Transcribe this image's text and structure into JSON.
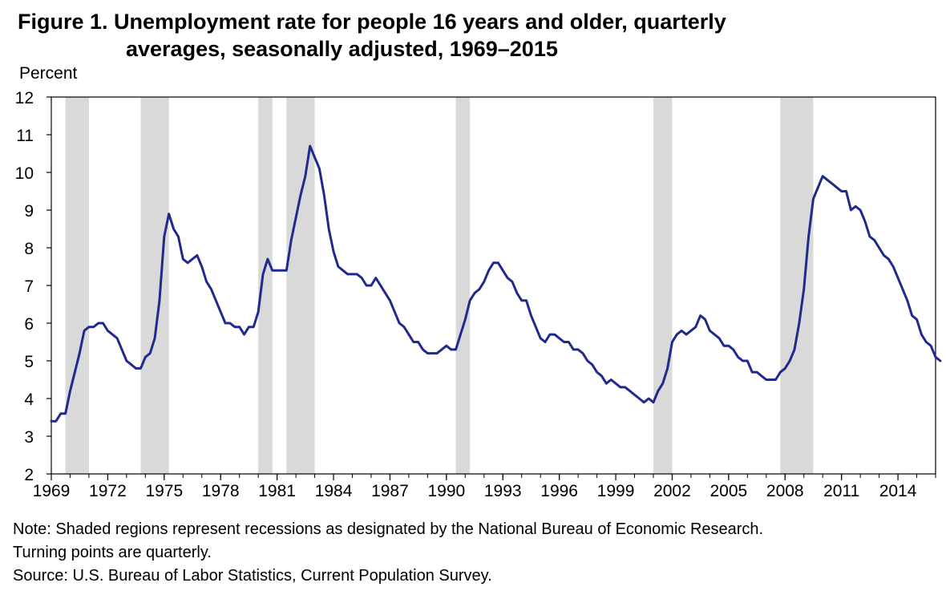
{
  "header": {
    "title_line1": "Figure 1. Unemployment rate for people 16 years and older, quarterly",
    "title_line2": "averages, seasonally adjusted, 1969–2015"
  },
  "chart_data": {
    "type": "line",
    "title": "Figure 1. Unemployment rate for people 16 years and older, quarterly averages, seasonally adjusted, 1969–2015",
    "ylabel": "Percent",
    "xlabel": "",
    "xlim": [
      1969.0,
      2016.0
    ],
    "ylim": [
      2,
      12
    ],
    "yticks": [
      2,
      3,
      4,
      5,
      6,
      7,
      8,
      9,
      10,
      11,
      12
    ],
    "xtick_labels": [
      "1969",
      "1972",
      "1975",
      "1978",
      "1981",
      "1984",
      "1987",
      "1990",
      "1993",
      "1996",
      "1999",
      "2002",
      "2005",
      "2008",
      "2011",
      "2014"
    ],
    "recessions": [
      {
        "start": 1969.75,
        "end": 1971.0
      },
      {
        "start": 1973.75,
        "end": 1975.25
      },
      {
        "start": 1980.0,
        "end": 1980.75
      },
      {
        "start": 1981.5,
        "end": 1983.0
      },
      {
        "start": 1990.5,
        "end": 1991.25
      },
      {
        "start": 2001.0,
        "end": 2002.0
      },
      {
        "start": 2007.75,
        "end": 2009.5
      }
    ],
    "series": [
      {
        "name": "Unemployment rate",
        "color": "#1f2a8c",
        "x_start": 1969.0,
        "x_step": 0.25,
        "values": [
          3.4,
          3.4,
          3.6,
          3.6,
          4.2,
          4.7,
          5.2,
          5.8,
          5.9,
          5.9,
          6.0,
          6.0,
          5.8,
          5.7,
          5.6,
          5.3,
          5.0,
          4.9,
          4.8,
          4.8,
          5.1,
          5.2,
          5.6,
          6.6,
          8.3,
          8.9,
          8.5,
          8.3,
          7.7,
          7.6,
          7.7,
          7.8,
          7.5,
          7.1,
          6.9,
          6.6,
          6.3,
          6.0,
          6.0,
          5.9,
          5.9,
          5.7,
          5.9,
          5.9,
          6.3,
          7.3,
          7.7,
          7.4,
          7.4,
          7.4,
          7.4,
          8.2,
          8.8,
          9.4,
          9.9,
          10.7,
          10.4,
          10.1,
          9.4,
          8.5,
          7.9,
          7.5,
          7.4,
          7.3,
          7.3,
          7.3,
          7.2,
          7.0,
          7.0,
          7.2,
          7.0,
          6.8,
          6.6,
          6.3,
          6.0,
          5.9,
          5.7,
          5.5,
          5.5,
          5.3,
          5.2,
          5.2,
          5.2,
          5.3,
          5.4,
          5.3,
          5.3,
          5.7,
          6.1,
          6.6,
          6.8,
          6.9,
          7.1,
          7.4,
          7.6,
          7.6,
          7.4,
          7.2,
          7.1,
          6.8,
          6.6,
          6.6,
          6.2,
          5.9,
          5.6,
          5.5,
          5.7,
          5.7,
          5.6,
          5.5,
          5.5,
          5.3,
          5.3,
          5.2,
          5.0,
          4.9,
          4.7,
          4.6,
          4.4,
          4.5,
          4.4,
          4.3,
          4.3,
          4.2,
          4.1,
          4.0,
          3.9,
          4.0,
          3.9,
          4.2,
          4.4,
          4.8,
          5.5,
          5.7,
          5.8,
          5.7,
          5.8,
          5.9,
          6.2,
          6.1,
          5.8,
          5.7,
          5.6,
          5.4,
          5.4,
          5.3,
          5.1,
          5.0,
          5.0,
          4.7,
          4.7,
          4.6,
          4.5,
          4.5,
          4.5,
          4.7,
          4.8,
          5.0,
          5.3,
          6.0,
          6.9,
          8.3,
          9.3,
          9.6,
          9.9,
          9.8,
          9.7,
          9.6,
          9.5,
          9.5,
          9.0,
          9.1,
          9.0,
          8.7,
          8.3,
          8.2,
          8.0,
          7.8,
          7.7,
          7.5,
          7.2,
          6.9,
          6.6,
          6.2,
          6.1,
          5.7,
          5.5,
          5.4,
          5.1,
          5.0
        ]
      }
    ]
  },
  "notes": {
    "note_line1": "Note: Shaded regions represent recessions as designated by the National Bureau of Economic Research.",
    "note_line2": "Turning points are quarterly.",
    "source": "Source: U.S. Bureau of Labor Statistics, Current Population Survey."
  }
}
